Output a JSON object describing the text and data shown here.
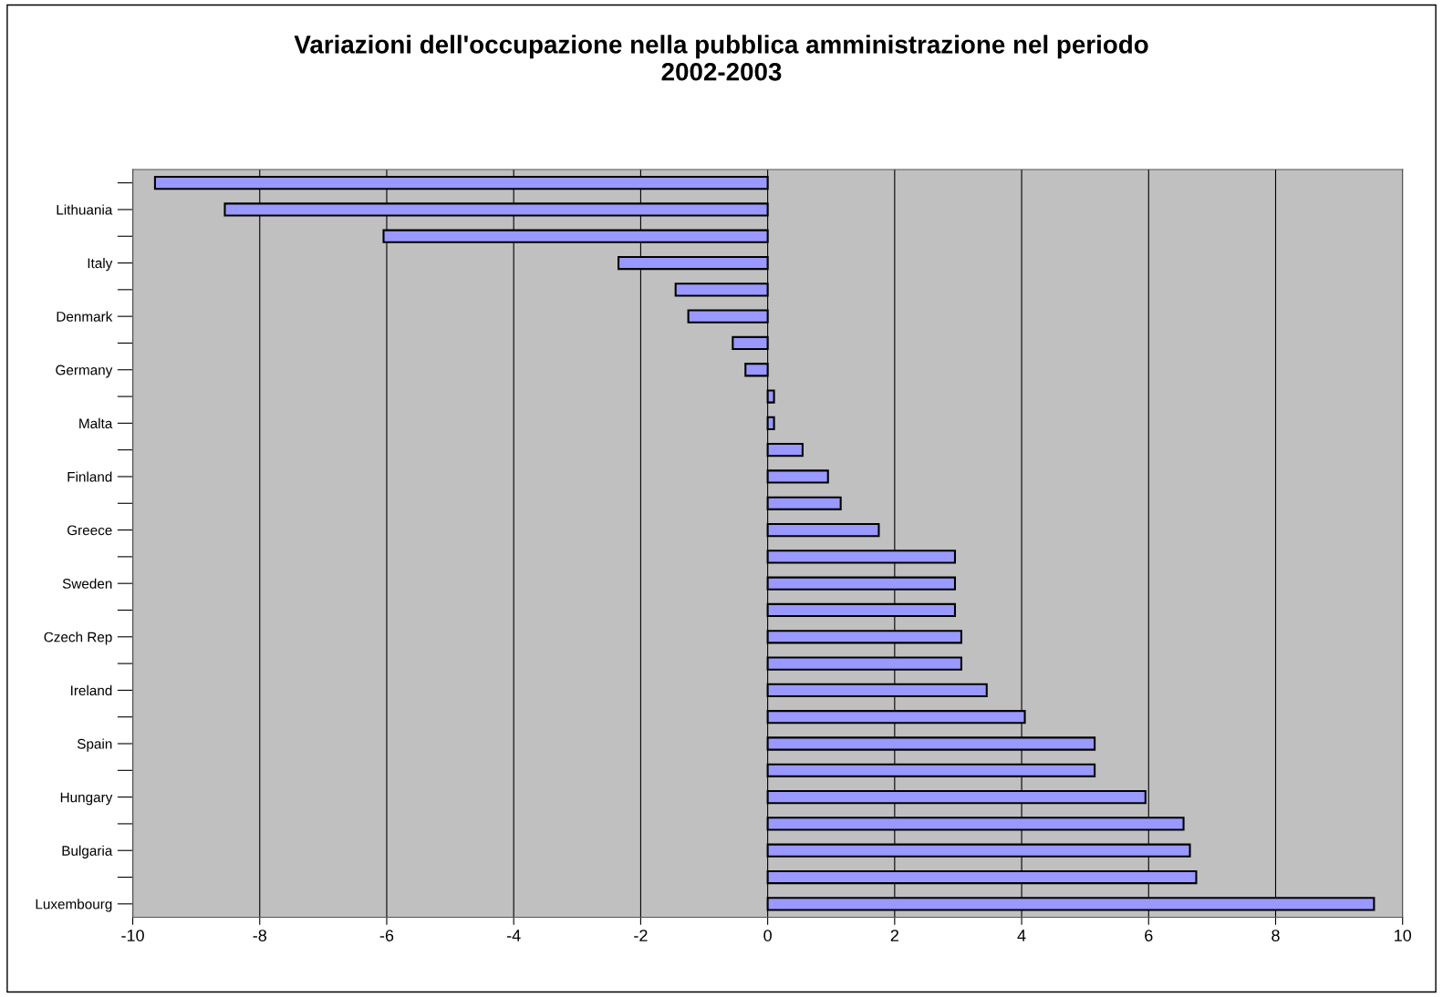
{
  "chart_data": {
    "type": "bar",
    "orientation": "horizontal",
    "title": "Variazioni dell'occupazione nella pubblica amministrazione nel periodo\n2002-2003",
    "categories": [
      null,
      "Lithuania",
      null,
      "Italy",
      null,
      "Denmark",
      null,
      "Germany",
      null,
      "Malta",
      null,
      "Finland",
      null,
      "Greece",
      null,
      "Sweden",
      null,
      "Czech Rep",
      null,
      "Ireland",
      null,
      "Spain",
      null,
      "Hungary",
      null,
      "Bulgaria",
      null,
      "Luxembourg"
    ],
    "values": [
      -9.65,
      -8.55,
      -6.05,
      -2.35,
      -1.45,
      -1.25,
      -0.55,
      -0.35,
      0.1,
      0.1,
      0.55,
      0.95,
      1.15,
      1.75,
      2.95,
      2.95,
      2.95,
      3.05,
      3.05,
      3.45,
      4.05,
      5.15,
      5.15,
      5.95,
      6.55,
      6.65,
      6.75,
      9.55
    ],
    "color": "#9999ff",
    "xlim": [
      -10,
      10
    ],
    "xticks": [
      -10,
      -8,
      -6,
      -4,
      -2,
      0,
      2,
      4,
      6,
      8,
      10
    ],
    "grid": "x"
  }
}
